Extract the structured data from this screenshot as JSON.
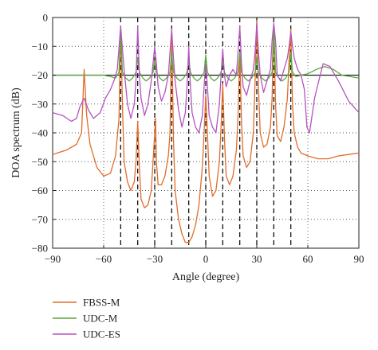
{
  "chart_data": {
    "type": "line",
    "title": "",
    "xlabel": "Angle (degree)",
    "ylabel": "DOA spectrum (dB)",
    "xlim": [
      -90,
      90
    ],
    "ylim": [
      -80,
      0
    ],
    "xticks": [
      -90,
      -60,
      -30,
      0,
      30,
      60,
      90
    ],
    "yticks": [
      0,
      -10,
      -20,
      -30,
      -40,
      -50,
      -60,
      -70,
      -80
    ],
    "xtick_labels": [
      "−90",
      "−60",
      "−30",
      "0",
      "30",
      "60",
      "90"
    ],
    "ytick_labels": [
      "0",
      "−10",
      "−20",
      "−30",
      "−40",
      "−50",
      "−60",
      "−70",
      "−80"
    ],
    "grid": true,
    "legend_position": "below plot, left",
    "threshold_line": -20,
    "true_angles": [
      -50,
      -40,
      -30,
      -20,
      -10,
      0,
      10,
      20,
      30,
      40,
      50
    ],
    "series": [
      {
        "name": "FBSS-M",
        "color": "#e06d2a",
        "x": [
          -90,
          -82,
          -76,
          -73,
          -71.5,
          -70,
          -68,
          -64,
          -60,
          -56,
          -53,
          -51,
          -50,
          -49,
          -48,
          -46,
          -44,
          -42,
          -41,
          -40,
          -39,
          -38,
          -36,
          -34,
          -32,
          -31,
          -30,
          -29.5,
          -29,
          -28,
          -26,
          -24,
          -22,
          -21,
          -20,
          -19,
          -18,
          -16,
          -14,
          -12,
          -10,
          -8,
          -6,
          -4,
          -2,
          -1,
          0,
          1,
          2,
          4,
          6,
          8,
          9,
          10,
          11,
          12,
          14,
          16,
          18,
          19,
          20,
          21,
          22,
          24,
          26,
          28,
          29,
          30,
          31,
          32,
          34,
          36,
          38,
          39,
          40,
          41,
          42,
          44,
          46,
          48,
          49,
          50,
          51,
          52,
          54,
          56,
          60,
          66,
          72,
          78,
          84,
          90
        ],
        "y": [
          -47.5,
          -46,
          -44,
          -40,
          -18,
          -34,
          -44,
          -52,
          -55,
          -54,
          -48,
          -35,
          -3,
          -30,
          -50,
          -57,
          -60,
          -57,
          -50,
          -36,
          -52,
          -63,
          -66,
          -65,
          -60,
          -50,
          -40,
          -35,
          -50,
          -58,
          -58,
          -55,
          -48,
          -40,
          -4,
          -42,
          -60,
          -70,
          -75,
          -78,
          -78,
          -76,
          -72,
          -65,
          -52,
          -40,
          -27,
          -40,
          -55,
          -62,
          -60,
          -50,
          -38,
          -23,
          -42,
          -55,
          -58,
          -55,
          -46,
          -34,
          -12,
          -36,
          -48,
          -52,
          -50,
          -40,
          -22,
          -1,
          -24,
          -40,
          -45,
          -44,
          -38,
          -28,
          -3,
          -30,
          -41,
          -43,
          -38,
          -28,
          -15,
          -4,
          -30,
          -40,
          -45,
          -47,
          -48,
          -49,
          -49,
          -48,
          -47.5,
          -47
        ]
      },
      {
        "name": "UDC-M",
        "color": "#5aaa3c",
        "x": [
          -90,
          -60,
          -56,
          -53,
          -51,
          -50,
          -49,
          -47,
          -45,
          -43,
          -41,
          -40,
          -39,
          -37,
          -35,
          -33,
          -31,
          -30,
          -29,
          -27,
          -25,
          -23,
          -21,
          -20,
          -19,
          -17,
          -15,
          -13,
          -11,
          -10,
          -9,
          -7,
          -5,
          -3,
          -1,
          0,
          1,
          3,
          5,
          7,
          9,
          10,
          11,
          13,
          15,
          17,
          19,
          20,
          21,
          23,
          25,
          27,
          29,
          30,
          31,
          33,
          35,
          37,
          39,
          40,
          41,
          43,
          45,
          47,
          49,
          50,
          51,
          53,
          56,
          60,
          65,
          70,
          75,
          80,
          90
        ],
        "y": [
          -20,
          -20,
          -20.5,
          -21,
          -19,
          -4,
          -19,
          -21,
          -22,
          -21,
          -19,
          -14,
          -19,
          -21,
          -22,
          -21,
          -19,
          -15,
          -19,
          -21,
          -22,
          -21,
          -19,
          -12,
          -19,
          -21,
          -22,
          -21,
          -19,
          -15,
          -19,
          -21,
          -22,
          -21,
          -19,
          -13,
          -19,
          -21,
          -22,
          -21,
          -19,
          -15,
          -19,
          -21,
          -22,
          -21,
          -19,
          -12,
          -19,
          -21,
          -22,
          -21,
          -19,
          -14,
          -19,
          -21,
          -22,
          -21,
          -19,
          -3,
          -19,
          -21,
          -22,
          -21,
          -19,
          -12,
          -19,
          -20.5,
          -20,
          -19.5,
          -18,
          -17,
          -18,
          -20,
          -21
        ]
      },
      {
        "name": "UDC-ES",
        "color": "#b455be",
        "x": [
          -90,
          -84,
          -79,
          -76,
          -74,
          -71.5,
          -69,
          -66,
          -62,
          -59,
          -56,
          -54,
          -52,
          -50,
          -48,
          -46,
          -44,
          -42,
          -41,
          -40,
          -39,
          -38,
          -36,
          -34,
          -32,
          -31,
          -30,
          -29,
          -28,
          -26,
          -24,
          -22,
          -21,
          -20,
          -19,
          -18,
          -16,
          -14,
          -12,
          -11,
          -10,
          -9,
          -8,
          -6,
          -4,
          -2,
          -1,
          0,
          1,
          2,
          4,
          6,
          8,
          9,
          10,
          11,
          12,
          14,
          16,
          18,
          19,
          20,
          21,
          22,
          24,
          26,
          28,
          29,
          30,
          31,
          32,
          34,
          36,
          38,
          39,
          40,
          41,
          42,
          44,
          46,
          48,
          49,
          50,
          51,
          52,
          54,
          56,
          58,
          59.5,
          61,
          64,
          66,
          69,
          73,
          78,
          84,
          90
        ],
        "y": [
          -33,
          -34,
          -36,
          -35,
          -31,
          -28,
          -32,
          -35,
          -33,
          -28,
          -25,
          -22,
          -18,
          -3,
          -18,
          -30,
          -35,
          -30,
          -22,
          -3,
          -20,
          -28,
          -34,
          -30,
          -22,
          -16,
          -10,
          -16,
          -24,
          -29,
          -26,
          -20,
          -12,
          -4,
          -14,
          -22,
          -32,
          -38,
          -33,
          -24,
          -10,
          -24,
          -33,
          -38,
          -40,
          -34,
          -24,
          -16,
          -24,
          -34,
          -38,
          -40,
          -30,
          -20,
          -11,
          -20,
          -24,
          -20,
          -18,
          -20,
          -12,
          -3,
          -16,
          -24,
          -27,
          -22,
          -18,
          -12,
          -2,
          -12,
          -20,
          -26,
          -22,
          -18,
          -8,
          -2,
          -8,
          -20,
          -22,
          -18,
          -14,
          -10,
          -5,
          -10,
          -14,
          -18,
          -20,
          -25,
          -38,
          -40,
          -28,
          -23,
          -16,
          -17,
          -22,
          -29,
          -33
        ]
      }
    ]
  }
}
